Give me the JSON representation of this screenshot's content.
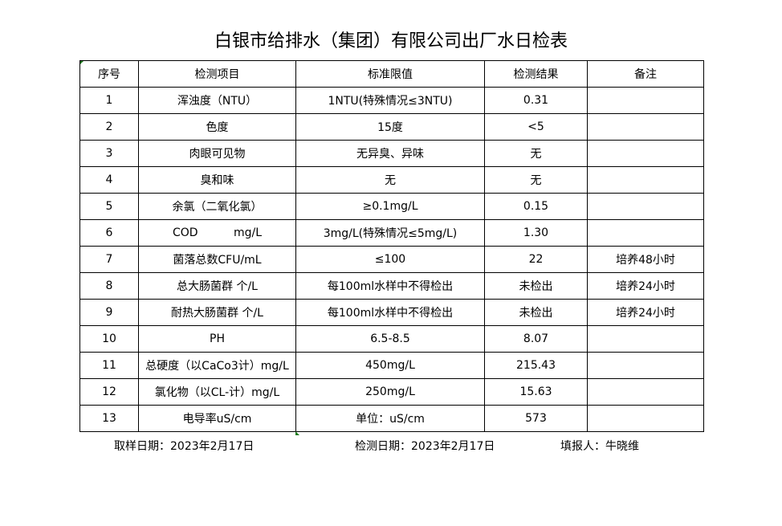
{
  "title": "白银市给排水（集团）有限公司出厂水日检表",
  "table": {
    "headers": [
      "序号",
      "检测项目",
      "标准限值",
      "检测结果",
      "备注"
    ],
    "rows": [
      [
        "1",
        "浑浊度（NTU）",
        "1NTU(特殊情况≤3NTU)",
        "0.31",
        ""
      ],
      [
        "2",
        "色度",
        "15度",
        "<5",
        ""
      ],
      [
        "3",
        "肉眼可见物",
        "无异臭、异味",
        "无",
        ""
      ],
      [
        "4",
        "臭和味",
        "无",
        "无",
        ""
      ],
      [
        "5",
        "余氯（二氧化氯）",
        "≥0.1mg/L",
        "0.15",
        ""
      ],
      [
        "6",
        "COD          mg/L",
        "3mg/L(特殊情况≤5mg/L)",
        "1.30",
        ""
      ],
      [
        "7",
        "菌落总数CFU/mL",
        "≤100",
        "22",
        "培养48小时"
      ],
      [
        "8",
        "总大肠菌群 个/L",
        "每100ml水样中不得检出",
        "未检出",
        "培养24小时"
      ],
      [
        "9",
        "耐热大肠菌群 个/L",
        "每100ml水样中不得检出",
        "未检出",
        "培养24小时"
      ],
      [
        "10",
        "PH",
        "6.5-8.5",
        "8.07",
        ""
      ],
      [
        "11",
        "总硬度（以CaCo3计）mg/L",
        "450mg/L",
        "215.43",
        ""
      ],
      [
        "12",
        "氯化物（以CL-计）mg/L",
        "250mg/L",
        "15.63",
        ""
      ],
      [
        "13",
        "电导率uS/cm",
        "单位：uS/cm",
        "573",
        ""
      ]
    ]
  },
  "footer": {
    "sampling_date": "取样日期：2023年2月17日",
    "test_date": "检测日期：2023年2月17日",
    "reporter": "填报人：牛晓维"
  }
}
